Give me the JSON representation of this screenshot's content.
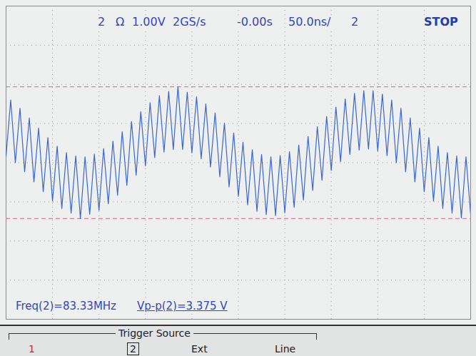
{
  "chart_data": {
    "type": "line",
    "color": "#3a66d0",
    "xlim": [
      -250,
      250
    ],
    "ylim": [
      -4,
      4
    ],
    "xticks": [
      -250,
      -200,
      -150,
      -100,
      -50,
      0,
      50,
      100,
      150,
      200,
      250
    ],
    "yticks": [
      -4,
      -3,
      -2,
      -1,
      0,
      1,
      2,
      3,
      4
    ],
    "grid": true,
    "tick_labels": false,
    "cursors": [
      1.94,
      -1.43
    ],
    "x": [
      -250,
      -245,
      -240,
      -235,
      -230,
      -225,
      -220,
      -215,
      -210,
      -205,
      -200,
      -195,
      -190,
      -185,
      -180,
      -175,
      -170,
      -165,
      -160,
      -155,
      -150,
      -145,
      -140,
      -135,
      -130,
      -125,
      -120,
      -115,
      -110,
      -105,
      -100,
      -95,
      -90,
      -85,
      -80,
      -75,
      -70,
      -65,
      -60,
      -55,
      -50,
      -45,
      -40,
      -35,
      -30,
      -25,
      -20,
      -15,
      -10,
      -5,
      0,
      5,
      10,
      15,
      20,
      25,
      30,
      35,
      40,
      45,
      50,
      55,
      60,
      65,
      70,
      75,
      80,
      85,
      90,
      95,
      100,
      105,
      110,
      115,
      120,
      125,
      130,
      135,
      140,
      145,
      150,
      155,
      160,
      165,
      170,
      175,
      180,
      185,
      190,
      195,
      200,
      205,
      210,
      215,
      220,
      225,
      230,
      235,
      240,
      245,
      250
    ],
    "values": [
      0.18,
      1.6,
      0.0,
      1.39,
      -0.23,
      1.14,
      -0.49,
      0.88,
      -0.74,
      0.64,
      -0.98,
      0.42,
      -1.17,
      0.26,
      -1.29,
      0.17,
      -1.43,
      0.15,
      -1.32,
      0.22,
      -1.22,
      0.36,
      -1.05,
      0.55,
      -0.83,
      0.79,
      -0.58,
      1.05,
      -0.32,
      1.3,
      -0.08,
      1.53,
      0.13,
      1.71,
      0.27,
      1.82,
      0.34,
      1.94,
      0.34,
      1.8,
      0.25,
      1.68,
      0.1,
      1.5,
      -0.11,
      1.27,
      -0.36,
      1.01,
      -0.62,
      0.76,
      -0.86,
      0.52,
      -1.08,
      0.33,
      -1.24,
      0.21,
      -1.33,
      0.15,
      -1.35,
      0.18,
      -1.28,
      0.28,
      -1.14,
      0.45,
      -0.95,
      0.67,
      -0.71,
      0.92,
      -0.45,
      1.18,
      -0.2,
      1.42,
      0.03,
      1.63,
      0.21,
      1.77,
      0.32,
      1.84,
      0.35,
      1.84,
      0.3,
      1.75,
      0.18,
      1.6,
      0.0,
      1.39,
      -0.23,
      1.14,
      -0.49,
      0.88,
      -0.74,
      0.64,
      -0.98,
      0.42,
      -1.17,
      0.26,
      -1.29,
      0.17,
      -1.41,
      0.15,
      -1.32
    ],
    "header": [
      "2",
      "Ω",
      "1.00V",
      "2GS/s",
      "-0.00s",
      "50.0ns/",
      "2",
      "STOP"
    ],
    "measurements": [
      "Freq(2)=83.33MHz",
      "Vp-p(2)=3.375 V"
    ],
    "menu_title": "Trigger Source",
    "menu_items": [
      "1",
      "2",
      "Ext",
      "Line"
    ]
  }
}
